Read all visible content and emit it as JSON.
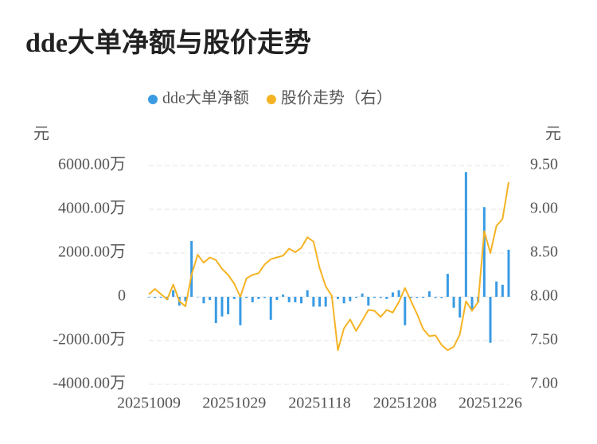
{
  "chart_data": {
    "type": "bar-line",
    "title": "dde大单净额与股价走势",
    "y_label": "元",
    "y2_label": "元",
    "categories": [
      "20251009",
      null,
      null,
      null,
      null,
      null,
      null,
      null,
      null,
      null,
      null,
      null,
      null,
      null,
      "20251029",
      null,
      null,
      null,
      null,
      null,
      null,
      null,
      null,
      null,
      null,
      null,
      null,
      null,
      "20251118",
      null,
      null,
      null,
      null,
      null,
      null,
      null,
      null,
      null,
      null,
      null,
      null,
      null,
      "20251208",
      null,
      null,
      null,
      null,
      null,
      null,
      null,
      null,
      null,
      null,
      null,
      null,
      null,
      "20251226",
      null,
      null,
      null
    ],
    "series": [
      {
        "name": "dde大单净额",
        "color": "#3a9be3",
        "type": "bar",
        "values": [
          -30,
          -50,
          -40,
          -150,
          300,
          -400,
          -200,
          2550,
          0,
          -300,
          -150,
          -1200,
          -900,
          -800,
          -100,
          -1300,
          -50,
          -250,
          -100,
          -50,
          -1050,
          -150,
          100,
          -250,
          -250,
          -300,
          300,
          -450,
          -450,
          -450,
          -50,
          -100,
          -300,
          -200,
          -50,
          150,
          -400,
          -50,
          -50,
          -100,
          200,
          300,
          -1300,
          -50,
          -50,
          -50,
          250,
          -50,
          -50,
          1050,
          -500,
          -950,
          5700,
          -600,
          -250,
          4100,
          -2100,
          700,
          550,
          2150
        ]
      },
      {
        "name": "股价走势（右）",
        "color": "#f5b324",
        "type": "line",
        "axis": "y2",
        "values": [
          8.03,
          8.09,
          8.03,
          7.97,
          8.14,
          7.95,
          7.89,
          8.25,
          8.48,
          8.39,
          8.45,
          8.42,
          8.32,
          8.25,
          8.15,
          8.0,
          8.21,
          8.25,
          8.27,
          8.37,
          8.43,
          8.45,
          8.47,
          8.55,
          8.51,
          8.56,
          8.68,
          8.63,
          8.33,
          8.12,
          8.01,
          7.39,
          7.64,
          7.74,
          7.61,
          7.73,
          7.85,
          7.84,
          7.77,
          7.85,
          7.82,
          7.94,
          8.1,
          7.95,
          7.8,
          7.63,
          7.55,
          7.56,
          7.45,
          7.39,
          7.43,
          7.57,
          7.95,
          7.84,
          7.94,
          8.75,
          8.5,
          8.81,
          8.89,
          9.31
        ]
      }
    ],
    "ylim": [
      -4000,
      6000
    ],
    "yticks": [
      {
        "value": -4000,
        "label": "-4000.00万"
      },
      {
        "value": -2000,
        "label": "-2000.00万"
      },
      0,
      {
        "value": 2000,
        "label": "2000.00万"
      },
      {
        "value": 4000,
        "label": "4000.00万"
      },
      {
        "value": 6000,
        "label": "6000.00万"
      }
    ],
    "y2lim": [
      7.0,
      9.5
    ],
    "y2ticks": [
      {
        "value": 7.0,
        "label": "7.00"
      },
      {
        "value": 7.5,
        "label": "7.50"
      },
      {
        "value": 8.0,
        "label": "8.00"
      },
      {
        "value": 8.5,
        "label": "8.50"
      },
      {
        "value": 9.0,
        "label": "9.00"
      },
      {
        "value": 9.5,
        "label": "9.50"
      }
    ],
    "grid": true,
    "legend": "top"
  }
}
